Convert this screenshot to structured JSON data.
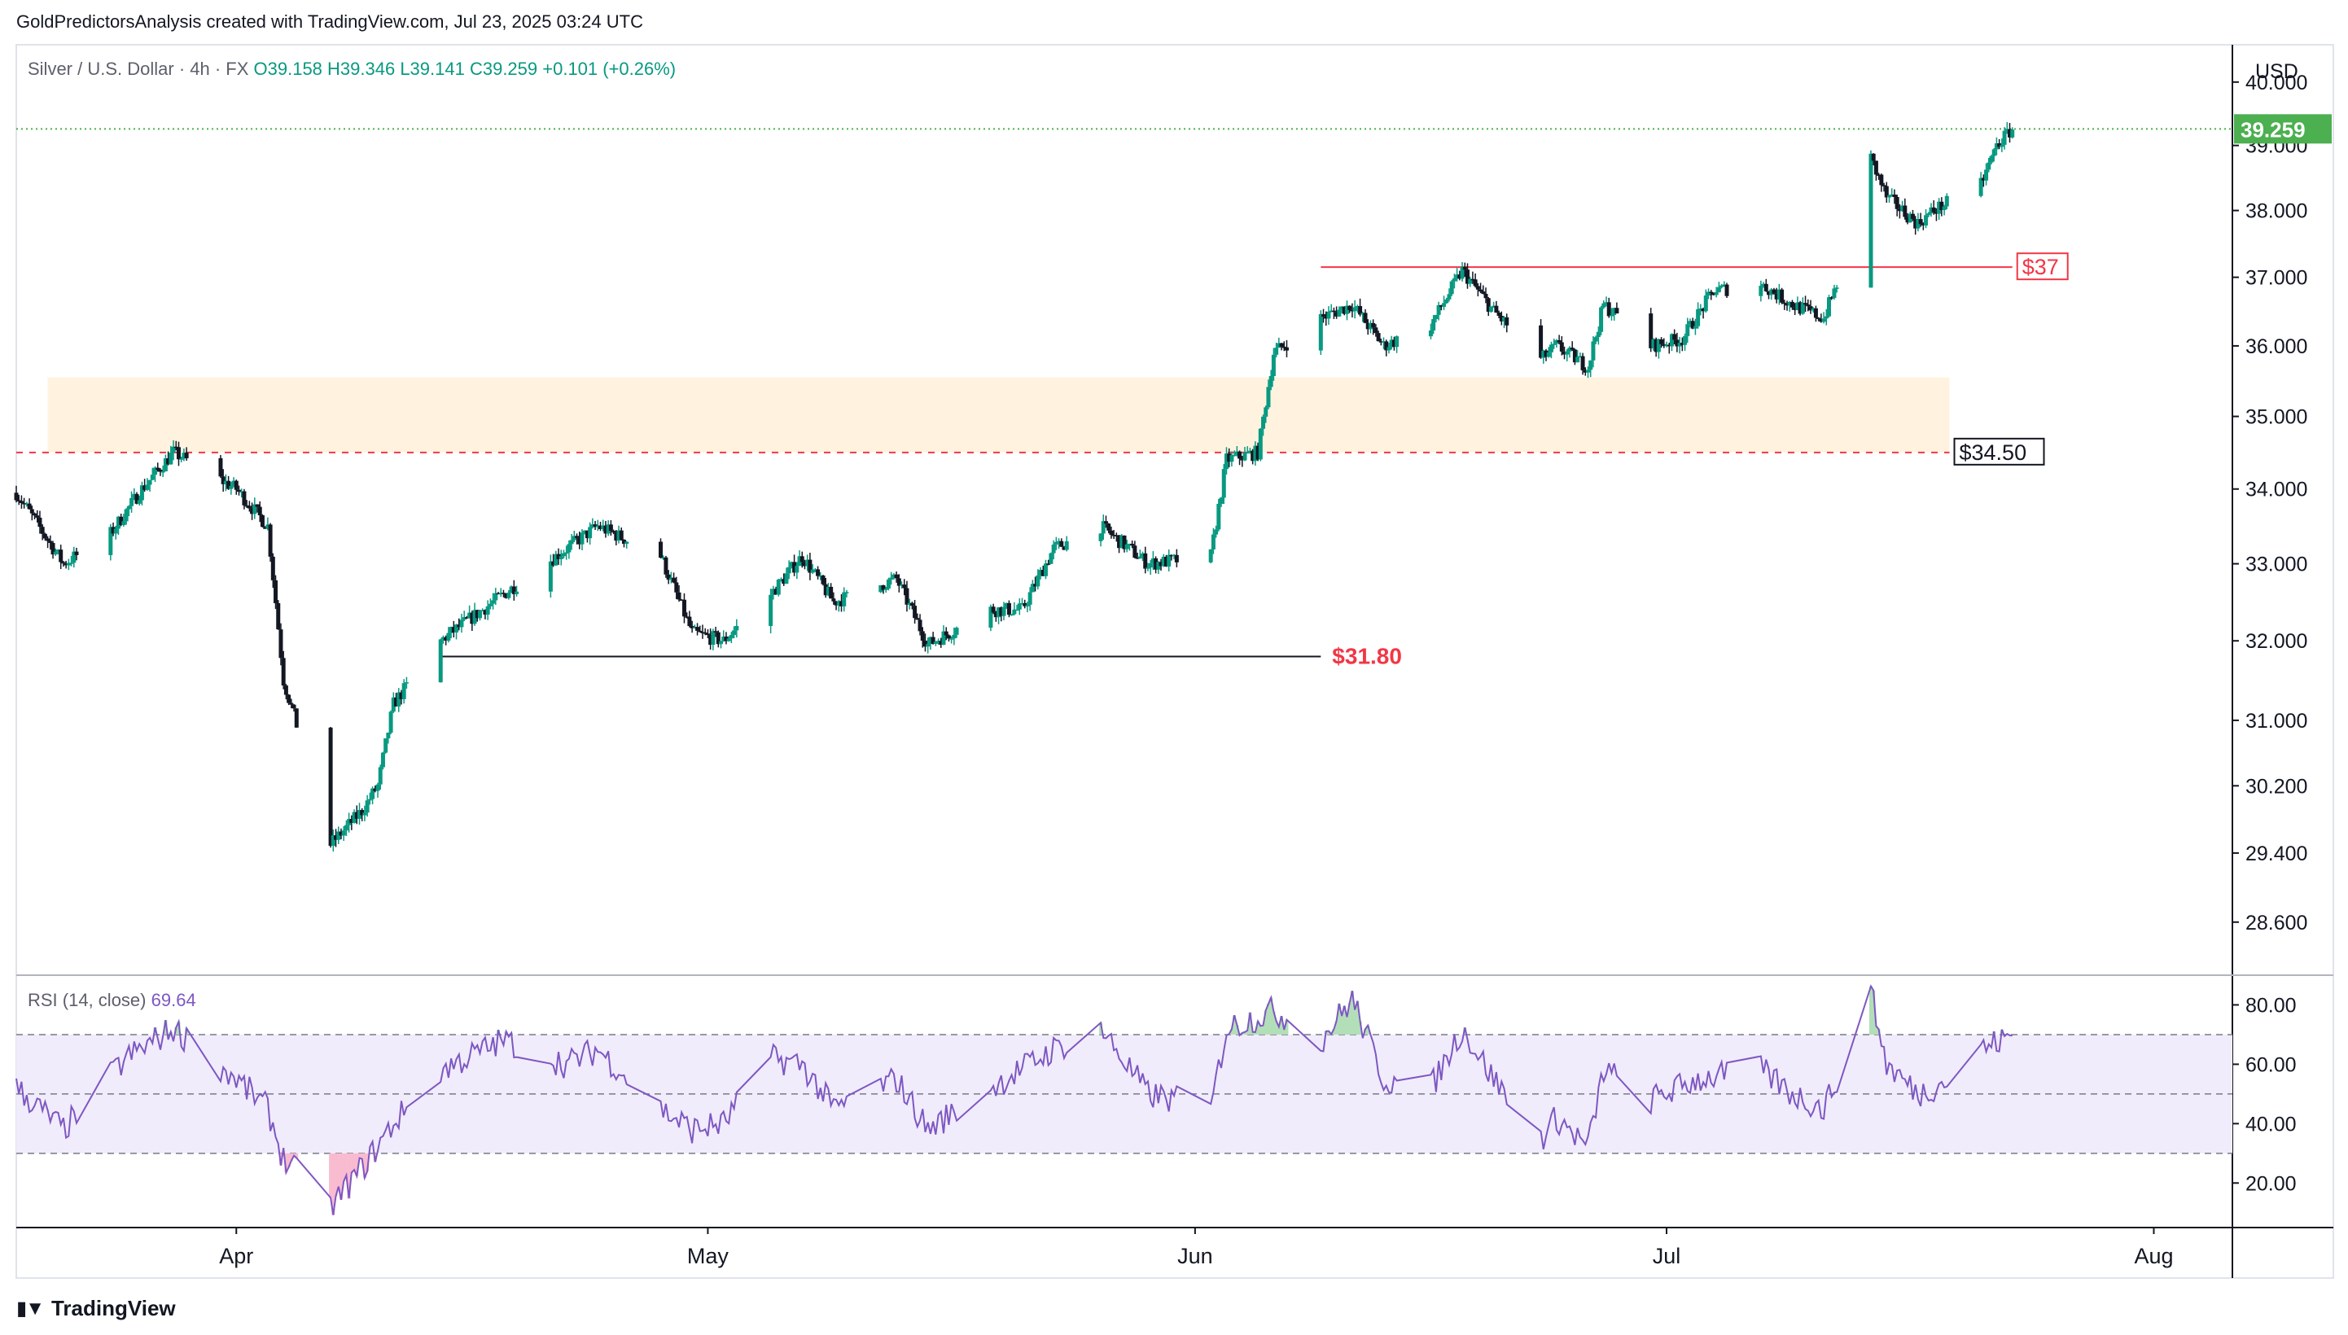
{
  "header": {
    "credit": "GoldPredictorsAnalysis created with TradingView.com, Jul 23, 2025 03:24 UTC",
    "symbol": "Silver / U.S. Dollar · 4h · FX",
    "ohlc": "O39.158 H39.346 L39.141 C39.259 +0.101 (+0.26%)"
  },
  "footer": {
    "logo_text": "TradingView",
    "logo_icon": "tradingview-logo-icon"
  },
  "chart_data": [
    {
      "type": "candlestick",
      "title": "Silver / U.S. Dollar · 4h · FX",
      "currency_label": "USD",
      "x_ticks": [
        "Apr",
        "May",
        "Jun",
        "Jul",
        "Aug"
      ],
      "x_range": [
        "2025-03-18",
        "2025-08-06"
      ],
      "y_ticks": [
        "40.000",
        "39.000",
        "38.000",
        "37.000",
        "36.000",
        "35.000",
        "34.000",
        "33.000",
        "32.000",
        "31.000",
        "30.200",
        "29.400",
        "28.600"
      ],
      "y_scale": "log",
      "ylim": [
        28.0,
        40.6
      ],
      "last_price": "39.259",
      "last_price_color": "#4caf50",
      "up_color": "#089981",
      "down_color": "#131722",
      "path_anchors": [
        [
          "2025-03-18",
          33.95
        ],
        [
          "2025-03-21",
          33.0
        ],
        [
          "2025-03-24",
          33.4
        ],
        [
          "2025-03-26",
          34.0
        ],
        [
          "2025-03-28",
          34.5
        ],
        [
          "2025-04-01",
          34.0
        ],
        [
          "2025-04-03",
          33.5
        ],
        [
          "2025-04-04",
          31.5
        ],
        [
          "2025-04-07",
          29.5
        ],
        [
          "2025-04-09",
          29.9
        ],
        [
          "2025-04-10",
          30.2
        ],
        [
          "2025-04-11",
          31.2
        ],
        [
          "2025-04-14",
          32.0
        ],
        [
          "2025-04-18",
          32.6
        ],
        [
          "2025-04-22",
          33.2
        ],
        [
          "2025-04-24",
          33.5
        ],
        [
          "2025-04-28",
          33.1
        ],
        [
          "2025-04-30",
          32.1
        ],
        [
          "2025-05-02",
          32.0
        ],
        [
          "2025-05-05",
          32.6
        ],
        [
          "2025-05-07",
          33.1
        ],
        [
          "2025-05-09",
          32.5
        ],
        [
          "2025-05-13",
          32.8
        ],
        [
          "2025-05-15",
          31.95
        ],
        [
          "2025-05-19",
          32.4
        ],
        [
          "2025-05-21",
          32.4
        ],
        [
          "2025-05-23",
          33.2
        ],
        [
          "2025-05-26",
          33.5
        ],
        [
          "2025-05-29",
          33.0
        ],
        [
          "2025-06-02",
          33.1
        ],
        [
          "2025-06-03",
          34.4
        ],
        [
          "2025-06-05",
          34.5
        ],
        [
          "2025-06-06",
          35.9
        ],
        [
          "2025-06-09",
          36.4
        ],
        [
          "2025-06-11",
          36.6
        ],
        [
          "2025-06-13",
          36.0
        ],
        [
          "2025-06-16",
          36.3
        ],
        [
          "2025-06-18",
          37.1
        ],
        [
          "2025-06-20",
          36.5
        ],
        [
          "2025-06-23",
          35.8
        ],
        [
          "2025-06-24",
          36.0
        ],
        [
          "2025-06-26",
          35.7
        ],
        [
          "2025-06-27",
          36.6
        ],
        [
          "2025-06-30",
          36.0
        ],
        [
          "2025-07-02",
          36.1
        ],
        [
          "2025-07-04",
          36.8
        ],
        [
          "2025-07-07",
          36.9
        ],
        [
          "2025-07-09",
          36.6
        ],
        [
          "2025-07-11",
          36.4
        ],
        [
          "2025-07-13",
          37.6
        ],
        [
          "2025-07-14",
          38.8
        ],
        [
          "2025-07-15",
          38.2
        ],
        [
          "2025-07-17",
          37.8
        ],
        [
          "2025-07-18",
          38.0
        ],
        [
          "2025-07-21",
          38.4
        ],
        [
          "2025-07-22",
          39.0
        ],
        [
          "2025-07-23",
          39.26
        ]
      ],
      "annotations": [
        {
          "kind": "hline",
          "label": "$37",
          "value": 37.15,
          "from": "2025-06-09",
          "to": "2025-07-23",
          "color": "#f23645"
        },
        {
          "kind": "dashed-hline",
          "label": "$34.50",
          "value": 34.5,
          "from": "2025-03-18",
          "to": "2025-07-19",
          "color": "#f23645"
        },
        {
          "kind": "zone",
          "from": "2025-03-20",
          "to": "2025-07-19",
          "low": 34.5,
          "high": 35.55,
          "color": "#fff3e0"
        },
        {
          "kind": "hline",
          "label": "$31.80",
          "value": 31.8,
          "from": "2025-04-14",
          "to": "2025-06-09",
          "color": "#131722"
        }
      ],
      "label_colors": {
        "$31.80": "#f23645",
        "$37": "#f23645",
        "$34.50": "#131722"
      }
    },
    {
      "type": "line",
      "title": "RSI (14, close)",
      "current_value": "69.64",
      "y_ticks": [
        "80.00",
        "60.00",
        "40.00",
        "20.00"
      ],
      "ylim": [
        5,
        90
      ],
      "bands": {
        "upper": 70,
        "middle": 50,
        "lower": 30
      },
      "line_color": "#7e57c2",
      "band_fill": "#f0ecfb",
      "overbought_fill": "#b2dfb8",
      "oversold_fill": "#f8bbd0",
      "path_anchors": [
        [
          "2025-03-18",
          52
        ],
        [
          "2025-03-21",
          38
        ],
        [
          "2025-03-25",
          62
        ],
        [
          "2025-03-28",
          72
        ],
        [
          "2025-04-01",
          55
        ],
        [
          "2025-04-03",
          45
        ],
        [
          "2025-04-04",
          28
        ],
        [
          "2025-04-07",
          12
        ],
        [
          "2025-04-09",
          25
        ],
        [
          "2025-04-11",
          40
        ],
        [
          "2025-04-14",
          58
        ],
        [
          "2025-04-18",
          68
        ],
        [
          "2025-04-22",
          60
        ],
        [
          "2025-04-24",
          65
        ],
        [
          "2025-04-28",
          45
        ],
        [
          "2025-04-30",
          38
        ],
        [
          "2025-05-02",
          40
        ],
        [
          "2025-05-05",
          62
        ],
        [
          "2025-05-07",
          60
        ],
        [
          "2025-05-09",
          45
        ],
        [
          "2025-05-13",
          55
        ],
        [
          "2025-05-15",
          38
        ],
        [
          "2025-05-19",
          52
        ],
        [
          "2025-05-23",
          65
        ],
        [
          "2025-05-26",
          72
        ],
        [
          "2025-05-29",
          50
        ],
        [
          "2025-06-02",
          45
        ],
        [
          "2025-06-03",
          72
        ],
        [
          "2025-06-06",
          78
        ],
        [
          "2025-06-09",
          68
        ],
        [
          "2025-06-11",
          82
        ],
        [
          "2025-06-13",
          55
        ],
        [
          "2025-06-16",
          52
        ],
        [
          "2025-06-18",
          72
        ],
        [
          "2025-06-20",
          55
        ],
        [
          "2025-06-23",
          35
        ],
        [
          "2025-06-24",
          42
        ],
        [
          "2025-06-26",
          32
        ],
        [
          "2025-06-27",
          58
        ],
        [
          "2025-06-30",
          48
        ],
        [
          "2025-07-03",
          55
        ],
        [
          "2025-07-07",
          58
        ],
        [
          "2025-07-09",
          50
        ],
        [
          "2025-07-11",
          45
        ],
        [
          "2025-07-13",
          70
        ],
        [
          "2025-07-14",
          84
        ],
        [
          "2025-07-15",
          60
        ],
        [
          "2025-07-17",
          50
        ],
        [
          "2025-07-19",
          55
        ],
        [
          "2025-07-21",
          65
        ],
        [
          "2025-07-23",
          69.64
        ]
      ]
    }
  ]
}
